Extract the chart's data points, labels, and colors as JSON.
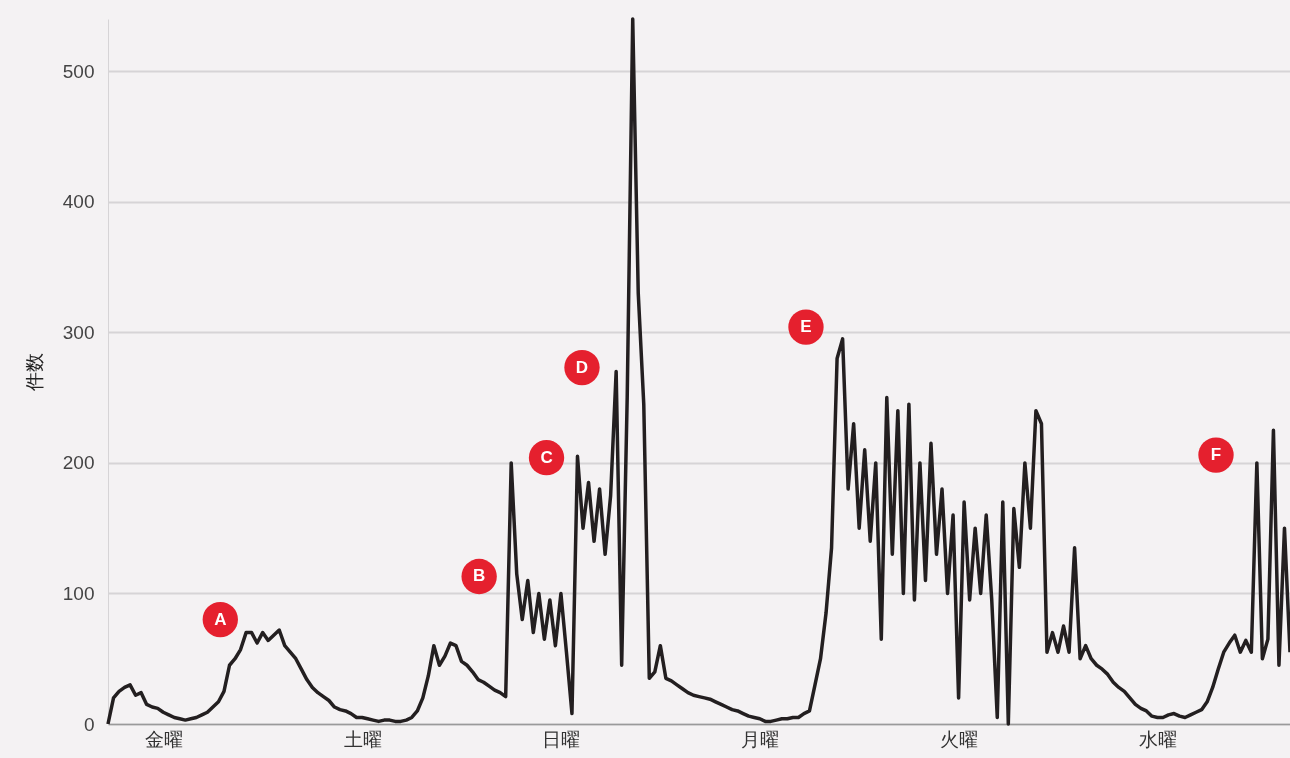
{
  "chart_data": {
    "type": "line",
    "ylabel": "件数",
    "color": "#231f20",
    "categories": [
      null,
      null,
      null,
      null,
      null,
      null,
      null,
      null,
      null,
      null,
      "金曜",
      null,
      null,
      null,
      null,
      null,
      null,
      null,
      null,
      null,
      null,
      null,
      null,
      null,
      null,
      null,
      null,
      null,
      null,
      null,
      null,
      null,
      null,
      null,
      null,
      null,
      null,
      null,
      null,
      null,
      null,
      null,
      null,
      null,
      null,
      null,
      "土曜",
      null,
      null,
      null,
      null,
      null,
      null,
      null,
      null,
      null,
      null,
      null,
      null,
      null,
      null,
      null,
      null,
      null,
      null,
      null,
      null,
      null,
      null,
      null,
      null,
      null,
      null,
      null,
      null,
      null,
      null,
      null,
      null,
      null,
      null,
      null,
      "日曜",
      null,
      null,
      null,
      null,
      null,
      null,
      null,
      null,
      null,
      null,
      null,
      null,
      null,
      null,
      null,
      null,
      null,
      null,
      null,
      null,
      null,
      null,
      null,
      null,
      null,
      null,
      null,
      null,
      null,
      null,
      null,
      null,
      null,
      null,
      null,
      "月曜",
      null,
      null,
      null,
      null,
      null,
      null,
      null,
      null,
      null,
      null,
      null,
      null,
      null,
      null,
      null,
      null,
      null,
      null,
      null,
      null,
      null,
      null,
      null,
      null,
      null,
      null,
      null,
      null,
      null,
      null,
      null,
      null,
      null,
      null,
      null,
      "火曜",
      null,
      null,
      null,
      null,
      null,
      null,
      null,
      null,
      null,
      null,
      null,
      null,
      null,
      null,
      null,
      null,
      null,
      null,
      null,
      null,
      null,
      null,
      null,
      null,
      null,
      null,
      null,
      null,
      null,
      null,
      null,
      null,
      null,
      null,
      null,
      "水曜",
      null,
      null,
      null,
      null,
      null,
      null,
      null,
      null,
      null,
      null,
      null,
      null,
      null,
      null,
      null,
      null,
      null,
      null,
      null,
      null,
      null,
      null,
      null,
      null
    ],
    "values": [
      0,
      20,
      25,
      28,
      30,
      22,
      24,
      15,
      13,
      12,
      9,
      7,
      5,
      4,
      3,
      4,
      5,
      7,
      9,
      13,
      17,
      25,
      45,
      50,
      57,
      70,
      70,
      62,
      70,
      64,
      68,
      72,
      60,
      55,
      50,
      42,
      34,
      28,
      24,
      21,
      18,
      13,
      11,
      10,
      8,
      5,
      5,
      4,
      3,
      2,
      3,
      3,
      2,
      2,
      3,
      5,
      10,
      20,
      37,
      60,
      45,
      52,
      62,
      60,
      48,
      45,
      40,
      34,
      32,
      29,
      26,
      24,
      21,
      200,
      115,
      80,
      110,
      70,
      100,
      65,
      95,
      60,
      100,
      55,
      8,
      205,
      150,
      185,
      140,
      180,
      130,
      175,
      270,
      45,
      250,
      540,
      330,
      245,
      35,
      40,
      60,
      35,
      33,
      30,
      27,
      24,
      22,
      21,
      20,
      19,
      17,
      15,
      13,
      11,
      10,
      8,
      6,
      5,
      4,
      2,
      2,
      3,
      4,
      4,
      5,
      5,
      8,
      10,
      30,
      50,
      85,
      135,
      280,
      295,
      180,
      230,
      150,
      210,
      140,
      200,
      65,
      250,
      130,
      240,
      100,
      245,
      95,
      200,
      110,
      215,
      130,
      180,
      100,
      160,
      20,
      170,
      95,
      150,
      100,
      160,
      95,
      5,
      170,
      0,
      165,
      120,
      200,
      150,
      240,
      230,
      55,
      70,
      55,
      75,
      55,
      135,
      50,
      60,
      50,
      45,
      42,
      38,
      32,
      28,
      25,
      20,
      15,
      12,
      10,
      6,
      5,
      5,
      7,
      8,
      6,
      5,
      7,
      9,
      11,
      17,
      28,
      42,
      55,
      62,
      68,
      55,
      64,
      55,
      200,
      50,
      65,
      225,
      45,
      150,
      55
    ],
    "ylim": [
      0,
      540
    ],
    "yticks": [
      0,
      100,
      200,
      300,
      400,
      500
    ],
    "grid": "y",
    "annotations": [
      {
        "text": "A",
        "y": 80
      },
      {
        "text": "B",
        "y": 113
      },
      {
        "text": "C",
        "y": 204
      },
      {
        "text": "D",
        "y": 273
      },
      {
        "text": "E",
        "y": 304
      },
      {
        "text": "F",
        "y": 206
      }
    ]
  }
}
